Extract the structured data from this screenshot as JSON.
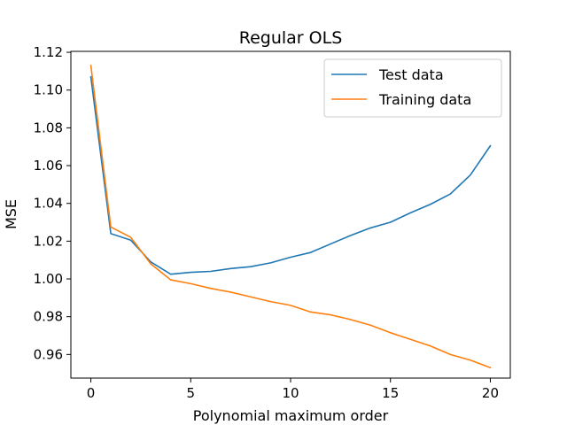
{
  "chart_data": {
    "type": "line",
    "title": "Regular OLS",
    "xlabel": "Polynomial maximum order",
    "ylabel": "MSE",
    "xlim": [
      -1,
      21
    ],
    "ylim": [
      0.9475,
      1.1205
    ],
    "xticks": [
      0,
      5,
      10,
      15,
      20
    ],
    "yticks": [
      0.96,
      0.98,
      1.0,
      1.02,
      1.04,
      1.06,
      1.08,
      1.1,
      1.12
    ],
    "ytick_labels": [
      "0.96",
      "0.98",
      "1.00",
      "1.02",
      "1.04",
      "1.06",
      "1.08",
      "1.10",
      "1.12"
    ],
    "legend_position": "top-right",
    "grid": false,
    "x": [
      0,
      1,
      2,
      3,
      4,
      5,
      6,
      7,
      8,
      9,
      10,
      11,
      12,
      13,
      14,
      15,
      16,
      17,
      18,
      19,
      20
    ],
    "series": [
      {
        "name": "Test data",
        "color": "#1f77b4",
        "values": [
          1.107,
          1.024,
          1.0205,
          1.009,
          1.0025,
          1.0035,
          1.004,
          1.0055,
          1.0065,
          1.0085,
          1.0115,
          1.014,
          1.0185,
          1.023,
          1.027,
          1.03,
          1.035,
          1.0395,
          1.045,
          1.055,
          1.0705
        ]
      },
      {
        "name": "Training data",
        "color": "#ff7f0e",
        "values": [
          1.113,
          1.0275,
          1.022,
          1.008,
          0.9995,
          0.9975,
          0.995,
          0.993,
          0.9905,
          0.988,
          0.986,
          0.9825,
          0.981,
          0.9785,
          0.9755,
          0.9715,
          0.968,
          0.9645,
          0.96,
          0.957,
          0.953
        ]
      }
    ]
  }
}
